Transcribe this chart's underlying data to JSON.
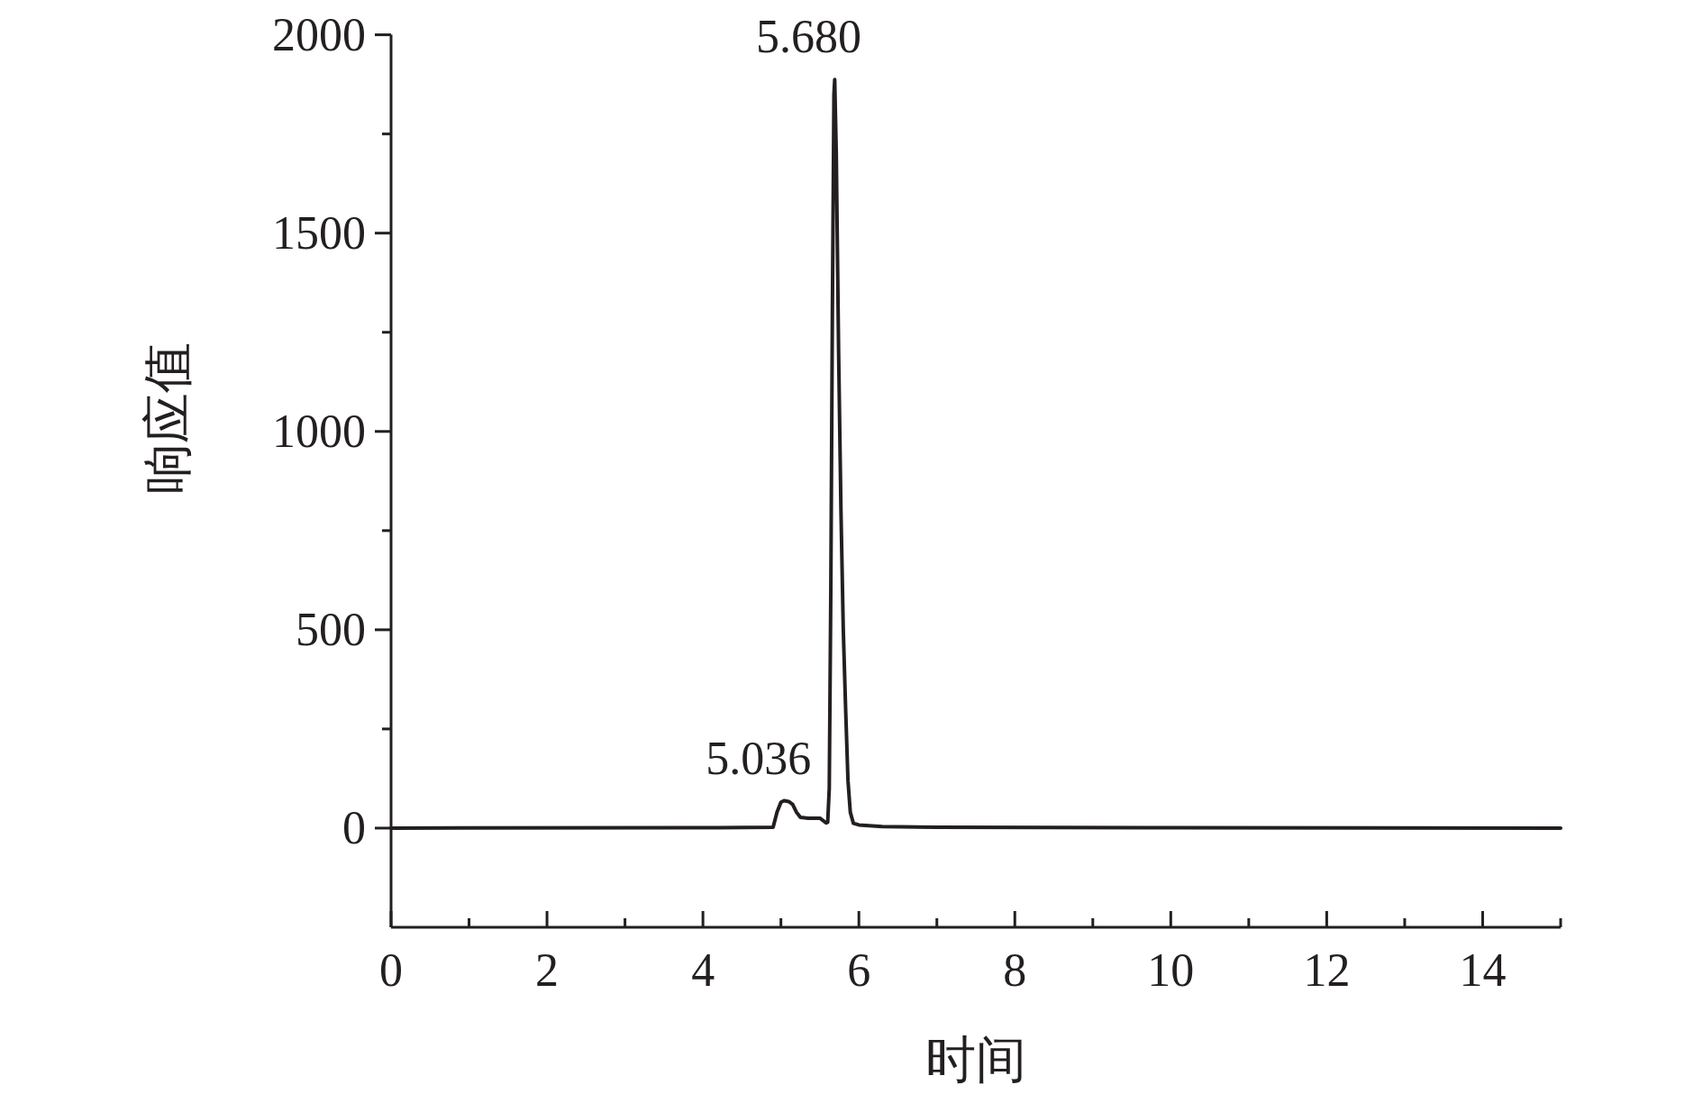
{
  "chart_data": {
    "type": "line",
    "xlabel": "时间",
    "ylabel": "响应值",
    "xlim": [
      0,
      15
    ],
    "ylim": [
      -250,
      2000
    ],
    "xticks": [
      0,
      {
        "value": 1,
        "label": null
      },
      2,
      {
        "value": 3,
        "label": null
      },
      4,
      {
        "value": 5,
        "label": null
      },
      6,
      {
        "value": 7,
        "label": null
      },
      8,
      {
        "value": 9,
        "label": null
      },
      10,
      {
        "value": 11,
        "label": null
      },
      12,
      {
        "value": 13,
        "label": null
      },
      14,
      {
        "value": 15,
        "label": null
      }
    ],
    "yticks": [
      0,
      {
        "value": 250,
        "label": null
      },
      500,
      {
        "value": 750,
        "label": null
      },
      1000,
      {
        "value": 1250,
        "label": null
      },
      1500,
      {
        "value": 1750,
        "label": null
      },
      2000
    ],
    "series": [
      {
        "color": "#231f20",
        "x": [
          0,
          4.2,
          4.9,
          4.95,
          5.0,
          5.04,
          5.1,
          5.15,
          5.2,
          5.25,
          5.35,
          5.5,
          5.58,
          5.6,
          5.62,
          5.64,
          5.66,
          5.68,
          5.69,
          5.71,
          5.74,
          5.77,
          5.8,
          5.83,
          5.86,
          5.89,
          5.93,
          6.0,
          6.3,
          7,
          10,
          15
        ],
        "values": [
          0,
          1,
          2,
          40,
          65,
          69,
          67,
          60,
          40,
          27,
          25,
          25,
          13,
          15,
          100,
          600,
          1300,
          1850,
          1887,
          1700,
          1200,
          800,
          500,
          300,
          120,
          40,
          12,
          8,
          4,
          2,
          1,
          0
        ]
      }
    ],
    "annotations": [
      {
        "text": "5.680",
        "x": 5.68,
        "y": 1887
      },
      {
        "text": "5.036",
        "x": 5.036,
        "y": 69
      }
    ]
  }
}
